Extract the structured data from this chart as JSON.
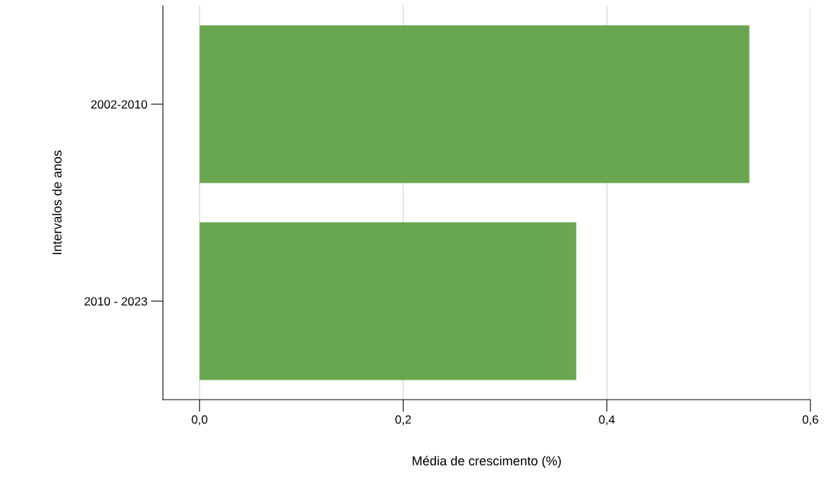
{
  "chart_data": {
    "type": "bar",
    "orientation": "horizontal",
    "xlabel": "Média de crescimento (%)",
    "ylabel": "Intervalos de anos",
    "categories": [
      "2002-2010",
      "2010 - 2023"
    ],
    "values": [
      0.54,
      0.37
    ],
    "color": "#68a74f",
    "xlim": [
      -0.036,
      0.6
    ],
    "xticks": [
      {
        "value": 0,
        "label": "0,0"
      },
      {
        "value": 0.2,
        "label": "0,2"
      },
      {
        "value": 0.4,
        "label": "0,4"
      },
      {
        "value": 0.6,
        "label": "0,6"
      }
    ],
    "grid": "x"
  }
}
